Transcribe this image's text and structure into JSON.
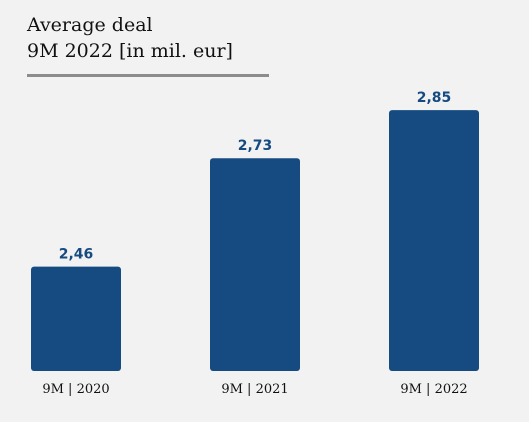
{
  "chart_data": {
    "type": "bar",
    "title": "Average deal",
    "subtitle": "9M 2022 [in mil. eur]",
    "categories": [
      "9M | 2020",
      "9M | 2021",
      "9M | 2022"
    ],
    "values": [
      2.46,
      2.73,
      2.85
    ],
    "value_labels": [
      "2,46",
      "2,73",
      "2,85"
    ],
    "xlabel": "",
    "ylabel": "",
    "ylim": [
      2.2,
      2.9
    ],
    "grid": false,
    "legend": "none",
    "bar_color": "#154b80"
  }
}
